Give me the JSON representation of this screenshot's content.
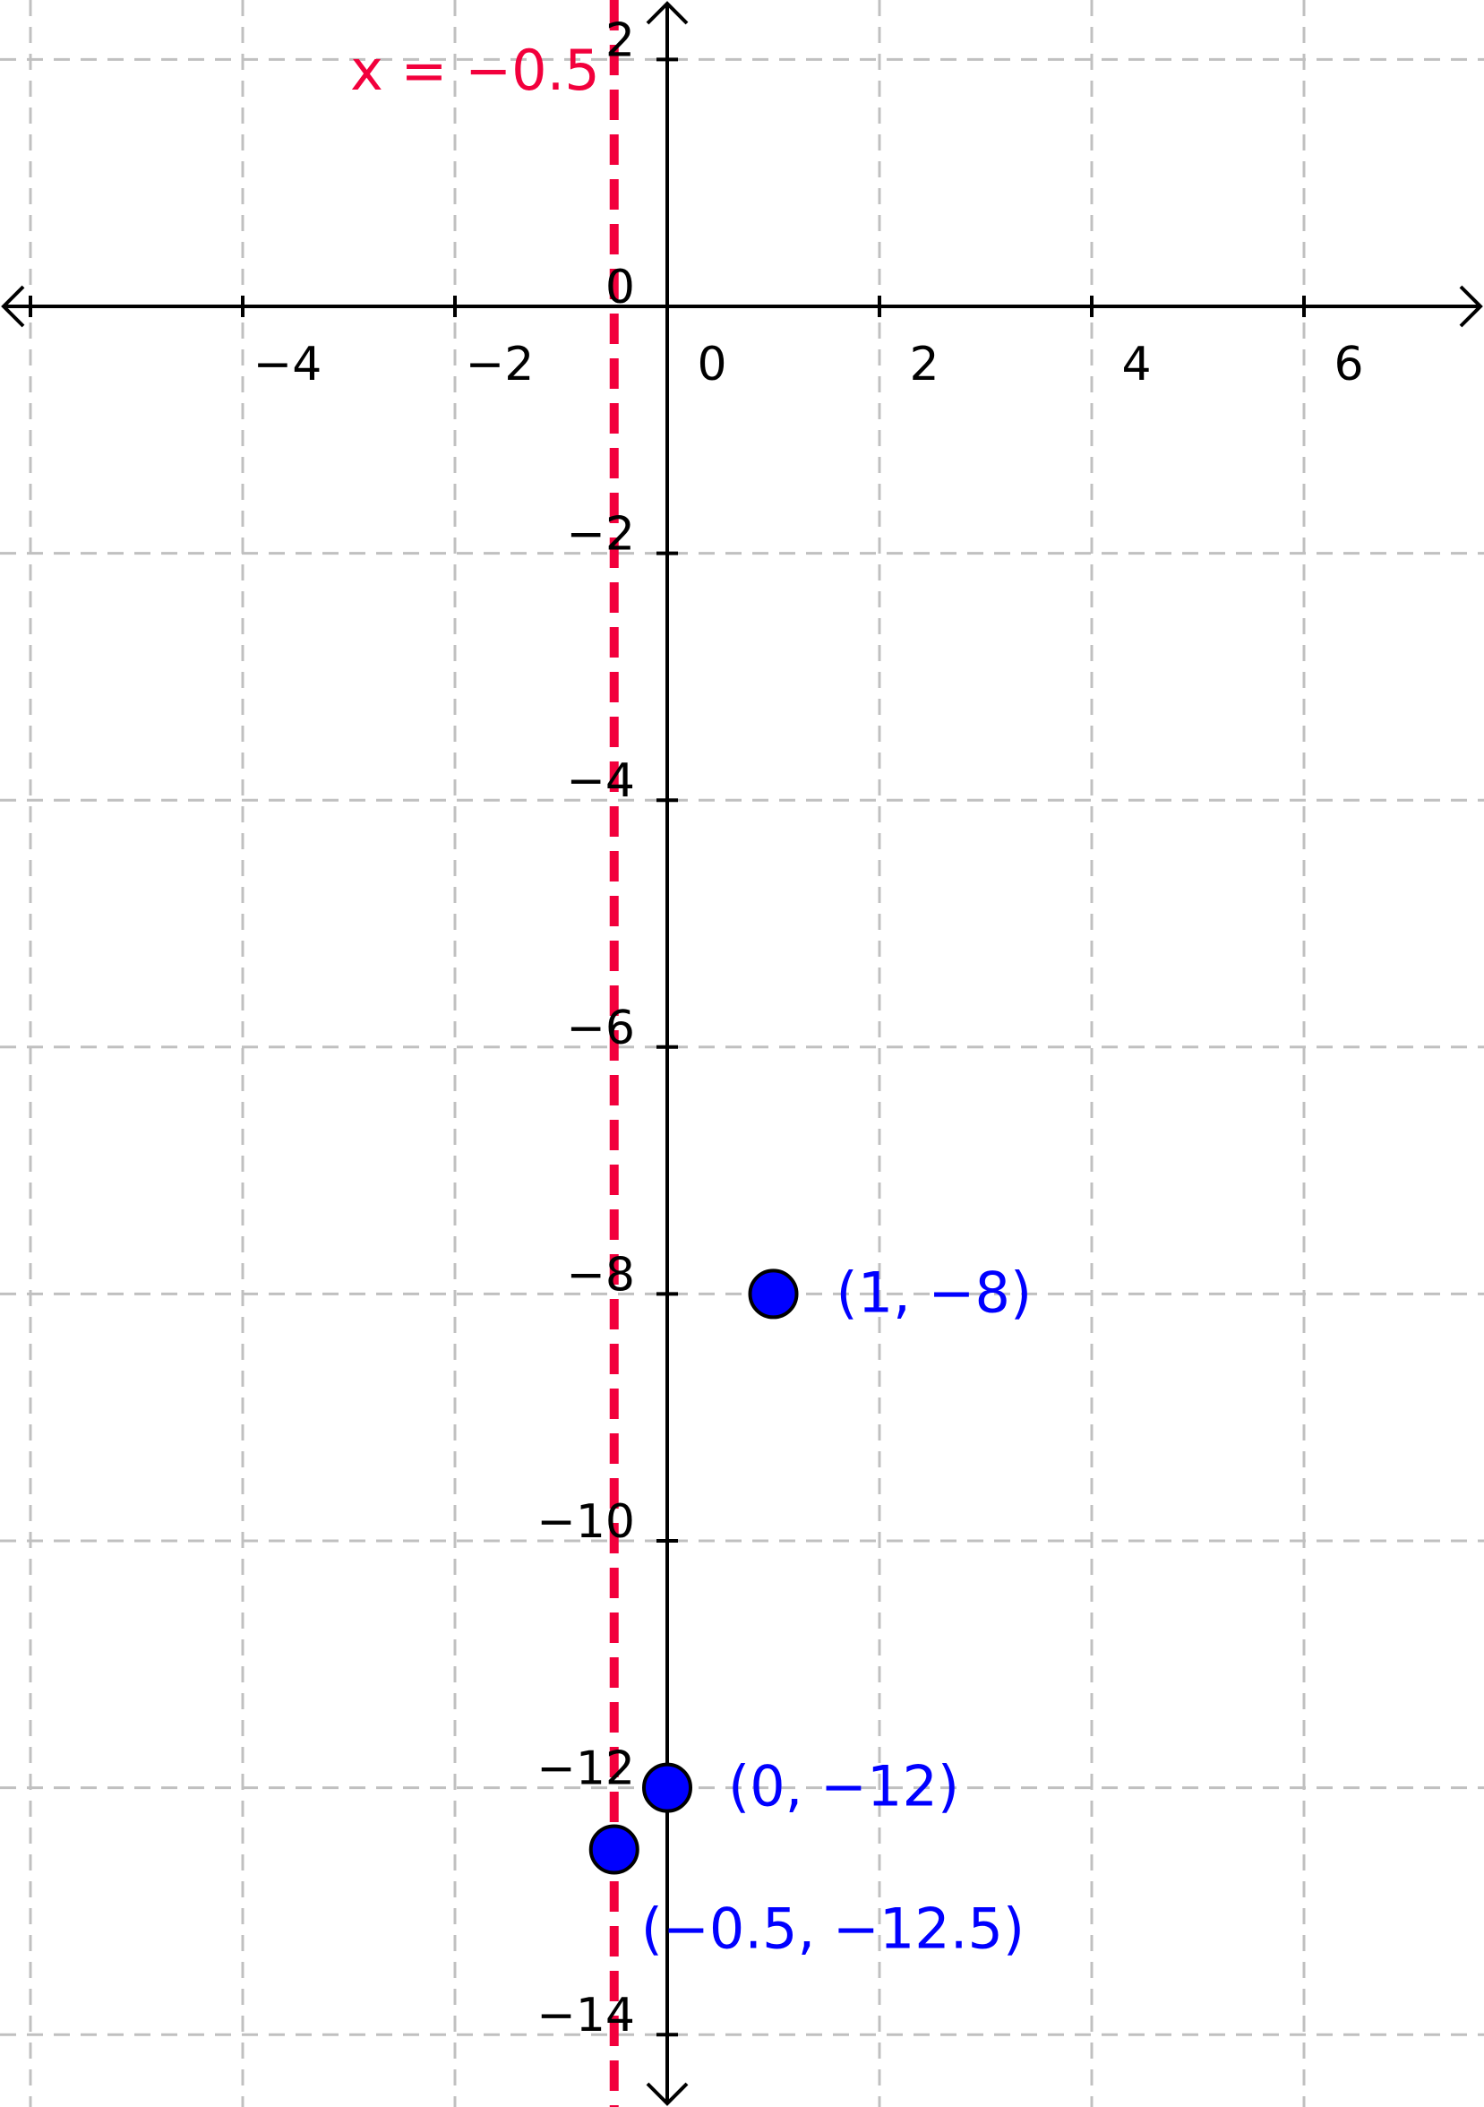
{
  "colors": {
    "axis": "#000000",
    "grid": "#c0c0c0",
    "asymptote": "#f2003c",
    "point_fill": "#0000ff",
    "point_stroke": "#000000",
    "point_label": "#0000ff"
  },
  "chart_data": {
    "type": "scatter",
    "title": "",
    "xlabel": "",
    "ylabel": "",
    "xlim": [
      -6.0,
      7.0
    ],
    "ylim": [
      -14.9,
      2.4
    ],
    "grid": true,
    "x_ticks": [
      -6,
      -4,
      -2,
      0,
      2,
      4,
      6
    ],
    "x_tick_labels": [
      "−4",
      "−2",
      "0",
      "2",
      "4",
      "6"
    ],
    "x_tick_label_values": [
      -4,
      -2,
      0,
      2,
      4,
      6
    ],
    "y_ticks": [
      2,
      0,
      -2,
      -4,
      -6,
      -8,
      -10,
      -12,
      -14
    ],
    "y_tick_labels": [
      "2",
      "0",
      "−2",
      "−4",
      "−6",
      "−8",
      "−10",
      "−12",
      "−14"
    ],
    "y_tick_label_values": [
      2,
      0,
      -2,
      -4,
      -6,
      -8,
      -10,
      -12,
      -14
    ],
    "vertical_line": {
      "x": -0.5,
      "label": "x = −0.5",
      "style": "dashed"
    },
    "points": [
      {
        "x": 1,
        "y": -8,
        "label": "(1, −8)"
      },
      {
        "x": 0,
        "y": -12,
        "label": "(0, −12)"
      },
      {
        "x": -0.5,
        "y": -12.5,
        "label": "(−0.5, −12.5)"
      }
    ]
  }
}
